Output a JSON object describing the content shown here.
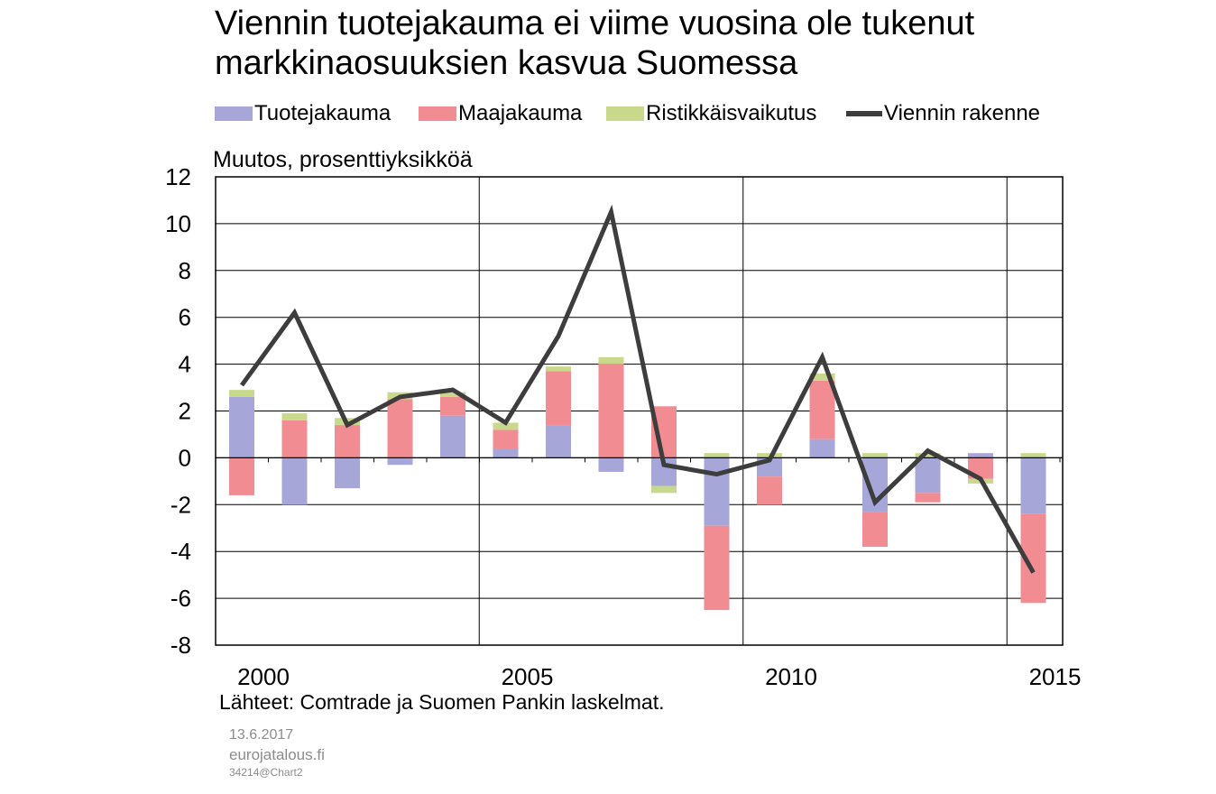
{
  "header": {
    "title_line1": "Viennin tuotejakauma ei viime vuosina ole tukenut",
    "title_line2": "markkinaosuuksien kasvua Suomessa"
  },
  "legend": [
    {
      "label": "Tuotejakauma",
      "kind": "bar",
      "color": "#a6a6d9"
    },
    {
      "label": "Maajakauma",
      "kind": "bar",
      "color": "#f28c93"
    },
    {
      "label": "Ristikkäisvaikutus",
      "kind": "bar",
      "color": "#c8d98c"
    },
    {
      "label": "Viennin rakenne",
      "kind": "line",
      "color": "#3d3d3d"
    }
  ],
  "footer": {
    "source": "Lähteet: Comtrade ja Suomen Pankin laskelmat.",
    "date": "13.6.2017",
    "site": "eurojatalous.fi",
    "code": "34214@Chart2"
  },
  "chart_data": {
    "type": "bar",
    "stacked": true,
    "ylabel": "Muutos, prosenttiyksikköä",
    "ylim": [
      -8,
      12
    ],
    "yticks": [
      -8,
      -6,
      -4,
      -2,
      0,
      2,
      4,
      6,
      8,
      10,
      12
    ],
    "xtick_labels": [
      "2000",
      "2005",
      "2010",
      "2015"
    ],
    "categories": [
      2000,
      2001,
      2002,
      2003,
      2004,
      2005,
      2006,
      2007,
      2008,
      2009,
      2010,
      2011,
      2012,
      2013,
      2014,
      2015
    ],
    "grid": true,
    "legend_position": "top",
    "series": [
      {
        "name": "Tuotejakauma",
        "type": "bar",
        "color": "#a6a6d9",
        "values": [
          2.6,
          -2.0,
          -1.3,
          -0.3,
          1.8,
          0.4,
          1.4,
          -0.6,
          -1.2,
          -2.9,
          -0.8,
          0.8,
          -2.3,
          -1.5,
          0.2,
          -2.4
        ]
      },
      {
        "name": "Maajakauma",
        "type": "bar",
        "color": "#f28c93",
        "values": [
          -1.6,
          1.6,
          1.4,
          2.5,
          0.8,
          0.8,
          2.3,
          4.0,
          2.2,
          -3.6,
          -1.2,
          2.5,
          -1.5,
          -0.4,
          -0.9,
          -3.8
        ]
      },
      {
        "name": "Ristikkäisvaikutus",
        "type": "bar",
        "color": "#c8d98c",
        "values": [
          0.3,
          0.3,
          0.3,
          0.3,
          0.2,
          0.3,
          0.2,
          0.3,
          -0.3,
          0.2,
          0.2,
          0.3,
          0.2,
          0.2,
          -0.2,
          0.2
        ]
      },
      {
        "name": "Viennin rakenne",
        "type": "line",
        "color": "#3d3d3d",
        "values": [
          3.1,
          6.2,
          1.4,
          2.6,
          2.9,
          1.5,
          5.2,
          10.5,
          -0.3,
          -0.7,
          -0.1,
          4.3,
          -1.9,
          0.3,
          -0.9,
          -4.9
        ]
      }
    ]
  }
}
